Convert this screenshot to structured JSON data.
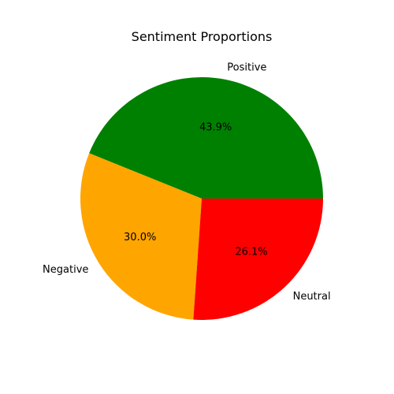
{
  "chart_data": {
    "type": "pie",
    "title": "Sentiment Proportions",
    "categories": [
      "Positive",
      "Negative",
      "Neutral"
    ],
    "values": [
      43.9,
      30.0,
      26.1
    ],
    "percent_labels": [
      "43.9%",
      "30.0%",
      "26.1%"
    ],
    "colors": [
      "#008000",
      "#ffa500",
      "#ff0000"
    ],
    "start_angle_deg": 0,
    "direction": "counterclockwise"
  }
}
